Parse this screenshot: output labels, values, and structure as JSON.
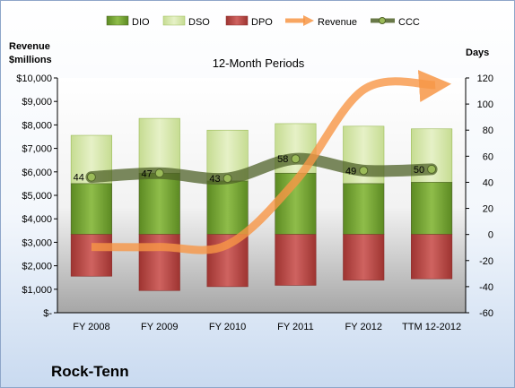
{
  "chart_data": {
    "type": "bar",
    "title": "12-Month Periods",
    "company": "Rock-Tenn",
    "y_left_label_line1": "Revenue",
    "y_left_label_line2": "$millions",
    "y_right_label": "Days",
    "categories": [
      "FY 2008",
      "FY 2009",
      "FY 2010",
      "FY 2011",
      "FY 2012",
      "TTM 12-2012"
    ],
    "y_left": {
      "min": 0,
      "max": 10000,
      "ticks": [
        "$-",
        "$1,000",
        "$2,000",
        "$3,000",
        "$4,000",
        "$5,000",
        "$6,000",
        "$7,000",
        "$8,000",
        "$9,000",
        "$10,000"
      ]
    },
    "y_right": {
      "min": -60,
      "max": 120,
      "ticks": [
        "-60",
        "-40",
        "-20",
        "0",
        "20",
        "40",
        "60",
        "80",
        "100",
        "120"
      ]
    },
    "series": [
      {
        "name": "DIO",
        "axis": "right",
        "color": "#6d9a2c",
        "values": [
          39,
          47,
          41,
          47,
          39,
          40
        ]
      },
      {
        "name": "DSO",
        "axis": "right",
        "color": "#d6e8a8",
        "values": [
          37,
          42,
          39,
          38,
          44,
          41
        ]
      },
      {
        "name": "DPO",
        "axis": "right",
        "color": "#c0504d",
        "values": [
          -32,
          -43,
          -40,
          -39,
          -35,
          -34
        ]
      },
      {
        "name": "Revenue",
        "axis": "left",
        "color": "#f79646",
        "values": [
          2800,
          2800,
          2900,
          5600,
          9500,
          9700
        ]
      },
      {
        "name": "CCC",
        "axis": "right",
        "color": "#4f6228",
        "values": [
          44,
          47,
          43,
          58,
          49,
          50
        ]
      }
    ],
    "data_labels": [
      "44",
      "47",
      "43",
      "58",
      "49",
      "50"
    ],
    "legend_position": "top",
    "grid": false
  }
}
